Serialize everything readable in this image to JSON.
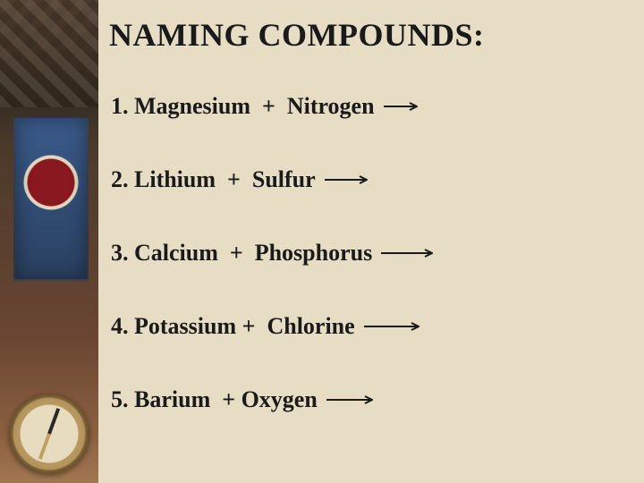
{
  "title": "NAMING COMPOUNDS:",
  "title_fontsize": 36,
  "item_fontsize": 26,
  "text_color": "#1a1a1a",
  "content_background": "#e6ddc4",
  "arrow_color": "#1a1a1a",
  "items": [
    {
      "num": "1.",
      "reactant_a": "Magnesium",
      "reactant_b": "Nitrogen",
      "arrow_length": 38
    },
    {
      "num": "2.",
      "reactant_a": "Lithium",
      "reactant_b": "Sulfur",
      "arrow_length": 48
    },
    {
      "num": "3.",
      "reactant_a": "Calcium",
      "reactant_b": "Phosphorus",
      "arrow_length": 58
    },
    {
      "num": "4.",
      "reactant_a": "Potassium",
      "reactant_b": "Chlorine",
      "arrow_length": 62
    },
    {
      "num": "5.",
      "reactant_a": "Barium",
      "reactant_b": "Oxygen",
      "arrow_length": 52
    }
  ]
}
